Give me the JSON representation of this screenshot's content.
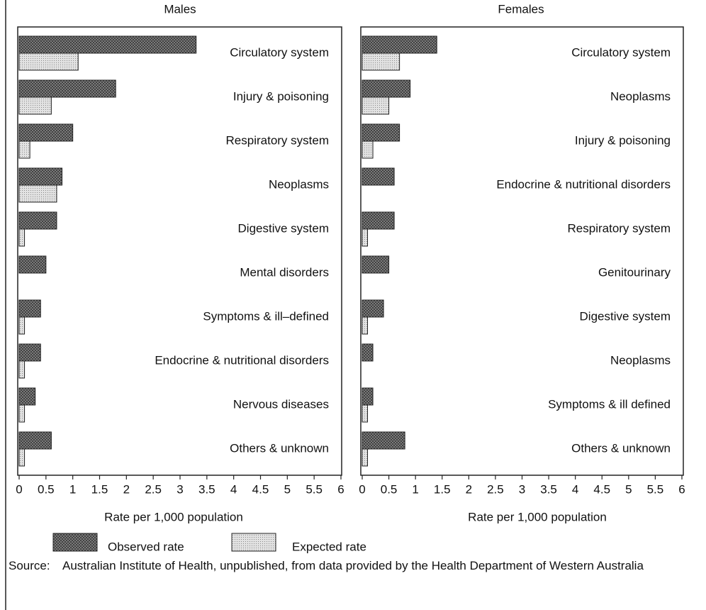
{
  "chart_data": [
    {
      "type": "bar",
      "orientation": "horizontal",
      "title": "Males",
      "categories": [
        "Circulatory system",
        "Injury & poisoning",
        "Respiratory system",
        "Neoplasms",
        "Digestive system",
        "Mental disorders",
        "Symptoms & ill–defined",
        "Endocrine & nutritional disorders",
        "Nervous diseases",
        "Others & unknown"
      ],
      "series": [
        {
          "name": "Observed rate",
          "color": "#8a8a8a",
          "values": [
            3.3,
            1.8,
            1.0,
            0.8,
            0.7,
            0.5,
            0.4,
            0.4,
            0.3,
            0.6
          ]
        },
        {
          "name": "Expected rate",
          "color": "#e2e2e2",
          "values": [
            1.1,
            0.6,
            0.2,
            0.7,
            0.1,
            0,
            0.1,
            0.1,
            0.1,
            0.1
          ]
        }
      ],
      "xlabel": "Rate per 1,000 population",
      "xlim": [
        0,
        6
      ],
      "xticks": [
        0,
        0.5,
        1,
        1.5,
        2,
        2.5,
        3,
        3.5,
        4,
        4.5,
        5,
        5.5,
        6
      ]
    },
    {
      "type": "bar",
      "orientation": "horizontal",
      "title": "Females",
      "categories": [
        "Circulatory system",
        "Neoplasms",
        "Injury & poisoning",
        "Endocrine & nutritional disorders",
        "Respiratory system",
        "Genitourinary",
        "Digestive system",
        "Neoplasms",
        "Symptoms & ill defined",
        "Others & unknown"
      ],
      "series": [
        {
          "name": "Observed rate",
          "color": "#8a8a8a",
          "values": [
            1.4,
            0.9,
            0.7,
            0.6,
            0.6,
            0.5,
            0.4,
            0.2,
            0.2,
            0.8
          ]
        },
        {
          "name": "Expected rate",
          "color": "#e2e2e2",
          "values": [
            0.7,
            0.5,
            0.2,
            0,
            0.1,
            0,
            0.1,
            0,
            0.1,
            0.1
          ]
        }
      ],
      "xlabel": "Rate per 1,000 population",
      "xlim": [
        0,
        6
      ],
      "xticks": [
        0,
        0.5,
        1,
        1.5,
        2,
        2.5,
        3,
        3.5,
        4,
        4.5,
        5,
        5.5,
        6
      ]
    }
  ],
  "source_label": "Source:",
  "source": "Australian Institute of Health, unpublished, from data provided by the Health Department of Western Australia"
}
